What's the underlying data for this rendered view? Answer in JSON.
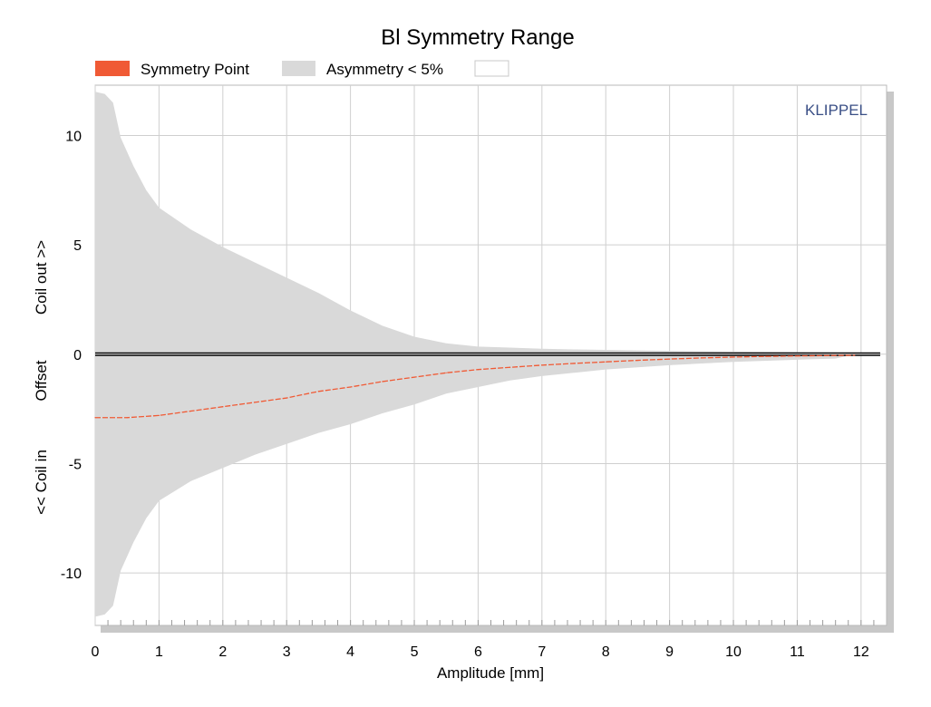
{
  "chart_data": {
    "type": "area",
    "title": "Bl Symmetry Range",
    "xlabel": "Amplitude [mm]",
    "ylabel_parts": [
      "<< Coil in",
      "Offset",
      "Coil out >>"
    ],
    "watermark": "KLIPPEL",
    "xlim": [
      0,
      12.4
    ],
    "ylim": [
      -12.4,
      12.3
    ],
    "x_ticks": [
      0,
      1,
      2,
      3,
      4,
      5,
      6,
      7,
      8,
      9,
      10,
      11,
      12
    ],
    "y_ticks": [
      10,
      5,
      0,
      -5,
      -10
    ],
    "grid": true,
    "legend": [
      {
        "label": "Symmetry Point",
        "color": "#f05a35"
      },
      {
        "label": "Asymmetry < 5%",
        "color": "#d9d9d9"
      },
      {
        "label": "",
        "color": "#ffffff"
      }
    ],
    "series": [
      {
        "name": "Asymmetry < 5%",
        "kind": "band",
        "color": "#d9d9d9",
        "x": [
          0,
          0.15,
          0.28,
          0.4,
          0.6,
          0.8,
          1.0,
          1.5,
          2.0,
          2.5,
          3.0,
          3.5,
          4.0,
          4.5,
          5.0,
          5.5,
          6.0,
          6.5,
          7.0,
          7.5,
          8.0,
          9.0,
          10.0,
          11.0,
          11.6,
          11.9
        ],
        "upper": [
          12.0,
          11.9,
          11.5,
          9.9,
          8.6,
          7.5,
          6.7,
          5.7,
          4.9,
          4.2,
          3.5,
          2.8,
          2.0,
          1.3,
          0.8,
          0.5,
          0.35,
          0.3,
          0.25,
          0.22,
          0.2,
          0.15,
          0.12,
          0.1,
          0.08,
          0
        ],
        "lower": [
          -12.0,
          -11.9,
          -11.5,
          -9.9,
          -8.6,
          -7.5,
          -6.7,
          -5.8,
          -5.2,
          -4.6,
          -4.1,
          -3.6,
          -3.2,
          -2.7,
          -2.3,
          -1.8,
          -1.5,
          -1.2,
          -1.0,
          -0.85,
          -0.7,
          -0.5,
          -0.35,
          -0.25,
          -0.2,
          0
        ]
      },
      {
        "name": "Symmetry Point",
        "kind": "line",
        "color": "#f05a35",
        "x": [
          0,
          0.5,
          1.0,
          1.5,
          2.0,
          2.5,
          3.0,
          3.5,
          4.0,
          4.5,
          5.0,
          5.5,
          6.0,
          6.5,
          7.0,
          7.5,
          8.0,
          8.5,
          9.0,
          9.5,
          10.0,
          10.5,
          11.0,
          11.5,
          11.9
        ],
        "y": [
          -2.9,
          -2.9,
          -2.8,
          -2.6,
          -2.4,
          -2.2,
          -2.0,
          -1.7,
          -1.5,
          -1.25,
          -1.05,
          -0.85,
          -0.7,
          -0.6,
          -0.5,
          -0.42,
          -0.35,
          -0.28,
          -0.22,
          -0.17,
          -0.13,
          -0.1,
          -0.08,
          -0.06,
          -0.05
        ]
      },
      {
        "name": "offset-zero",
        "kind": "hline",
        "color": "#000000",
        "y": 0,
        "x_end": 12.3
      }
    ]
  }
}
